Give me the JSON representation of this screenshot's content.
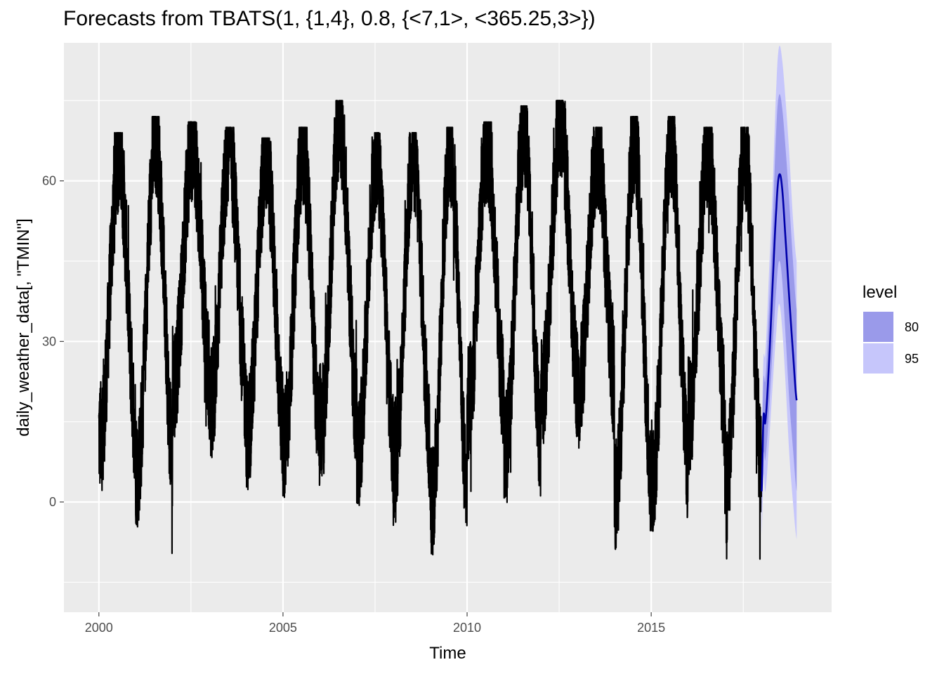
{
  "chart_data": {
    "type": "line",
    "title": "Forecasts from TBATS(1, {1,4}, 0.8, {<7,1>, <365.25,3>})",
    "xlabel": "Time",
    "ylabel": "daily_weather_data[, \"TMIN\"]",
    "xlim": [
      1999.05,
      2019.9
    ],
    "ylim": [
      -20.6,
      85.8
    ],
    "x_ticks": [
      2000,
      2005,
      2010,
      2015
    ],
    "x_tick_labels": [
      "2000",
      "2005",
      "2010",
      "2015"
    ],
    "y_ticks": [
      0,
      30,
      60
    ],
    "y_tick_labels": [
      "0",
      "30",
      "60"
    ],
    "grid": true,
    "legend": {
      "title": "level",
      "position": "right",
      "entries": [
        {
          "label": "80",
          "color": "#9a9aea"
        },
        {
          "label": "95",
          "color": "#c6c6fb"
        }
      ]
    },
    "series": [
      {
        "role": "observed",
        "color": "#000000",
        "start": 2000.0,
        "end": 2017.99,
        "mean_level": 33,
        "seasonal_amplitude": 24,
        "annual_peaks_approx": [
          {
            "x": 2000.55,
            "y": 69
          },
          {
            "x": 2001.55,
            "y": 72
          },
          {
            "x": 2002.55,
            "y": 71
          },
          {
            "x": 2003.55,
            "y": 70
          },
          {
            "x": 2004.55,
            "y": 68
          },
          {
            "x": 2005.55,
            "y": 70
          },
          {
            "x": 2006.6,
            "y": 75
          },
          {
            "x": 2007.55,
            "y": 69
          },
          {
            "x": 2008.55,
            "y": 69
          },
          {
            "x": 2009.55,
            "y": 70
          },
          {
            "x": 2010.55,
            "y": 71
          },
          {
            "x": 2011.55,
            "y": 74
          },
          {
            "x": 2012.55,
            "y": 75
          },
          {
            "x": 2013.55,
            "y": 70
          },
          {
            "x": 2014.55,
            "y": 72
          },
          {
            "x": 2015.55,
            "y": 72
          },
          {
            "x": 2016.55,
            "y": 70
          },
          {
            "x": 2017.55,
            "y": 70
          }
        ],
        "annual_troughs_approx": [
          {
            "x": 2000.05,
            "y": -4
          },
          {
            "x": 2001.05,
            "y": -10
          },
          {
            "x": 2002.05,
            "y": 7
          },
          {
            "x": 2003.05,
            "y": 2
          },
          {
            "x": 2004.05,
            "y": -3
          },
          {
            "x": 2005.05,
            "y": -5
          },
          {
            "x": 2006.05,
            "y": -1
          },
          {
            "x": 2007.05,
            "y": -7
          },
          {
            "x": 2008.05,
            "y": -7
          },
          {
            "x": 2009.05,
            "y": -16
          },
          {
            "x": 2010.05,
            "y": 2
          },
          {
            "x": 2011.05,
            "y": -7
          },
          {
            "x": 2012.05,
            "y": 5
          },
          {
            "x": 2013.05,
            "y": 5
          },
          {
            "x": 2014.05,
            "y": -14
          },
          {
            "x": 2015.05,
            "y": -11
          },
          {
            "x": 2016.05,
            "y": 0
          },
          {
            "x": 2017.05,
            "y": -13
          }
        ]
      },
      {
        "role": "forecast_mean",
        "color": "#0000aa",
        "x": [
          2018.0,
          2018.05,
          2018.1,
          2018.2,
          2018.3,
          2018.4,
          2018.47,
          2018.55,
          2018.65,
          2018.75,
          2018.85,
          2018.95
        ],
        "y": [
          2,
          16,
          15,
          26,
          41,
          55,
          61,
          59,
          49,
          38,
          28,
          19
        ]
      },
      {
        "role": "interval_80",
        "name": "80",
        "color": "#9a9aea",
        "x": [
          2018.0,
          2018.05,
          2018.1,
          2018.2,
          2018.3,
          2018.4,
          2018.47,
          2018.55,
          2018.65,
          2018.75,
          2018.85,
          2018.95
        ],
        "lower": [
          -2,
          9,
          8,
          17,
          29,
          40,
          45,
          42,
          31,
          19,
          10,
          2
        ],
        "upper": [
          10,
          23,
          23,
          36,
          52,
          70,
          76,
          74,
          66,
          56,
          45,
          36
        ]
      },
      {
        "role": "interval_95",
        "name": "95",
        "color": "#c6c6fb",
        "x": [
          2018.0,
          2018.05,
          2018.1,
          2018.2,
          2018.3,
          2018.4,
          2018.47,
          2018.55,
          2018.65,
          2018.75,
          2018.85,
          2018.95
        ],
        "lower": [
          -6,
          5,
          2,
          11,
          22,
          32,
          37,
          33,
          22,
          9,
          0,
          -7
        ],
        "upper": [
          15,
          27,
          28,
          43,
          59,
          78,
          85,
          83,
          75,
          65,
          53,
          45
        ]
      }
    ]
  }
}
